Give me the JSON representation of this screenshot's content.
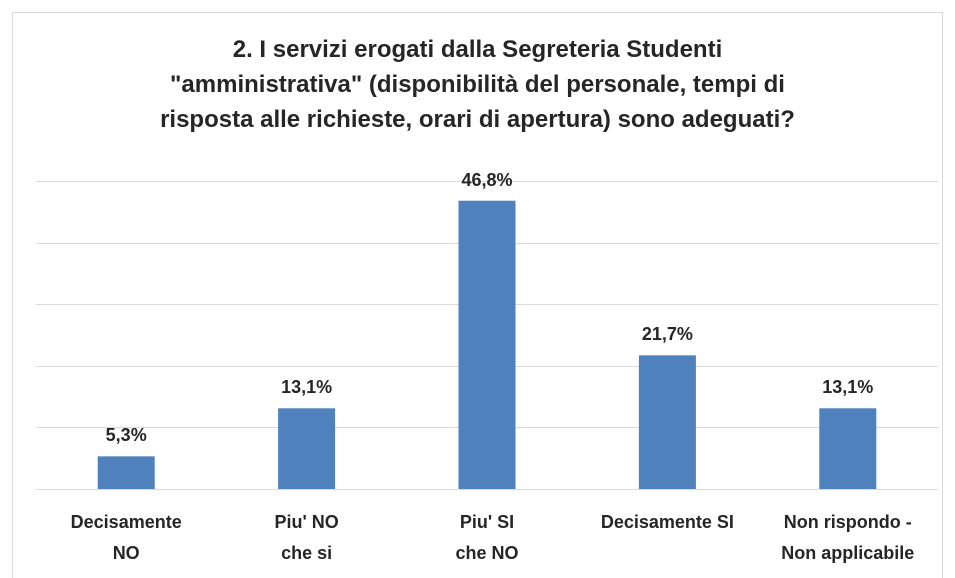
{
  "chart_data": {
    "type": "bar",
    "title": "2. I servizi erogati dalla Segreteria Studenti\n\"amministrativa\" (disponibilità del personale, tempi di\nrisposta alle richieste, orari di apertura) sono adeguati?",
    "categories": [
      "Decisamente\nNO",
      "Piu' NO\nche si",
      "Piu' SI\nche NO",
      "Decisamente SI",
      "Non rispondo -\nNon applicabile"
    ],
    "values": [
      5.3,
      13.1,
      46.8,
      21.7,
      13.1
    ],
    "value_labels": [
      "5,3%",
      "13,1%",
      "46,8%",
      "21,7%",
      "13,1%"
    ],
    "color": "#4f81bd",
    "ylim": [
      0,
      50
    ],
    "yticks": [
      0,
      10,
      20,
      30,
      40,
      50
    ],
    "grid": true
  }
}
